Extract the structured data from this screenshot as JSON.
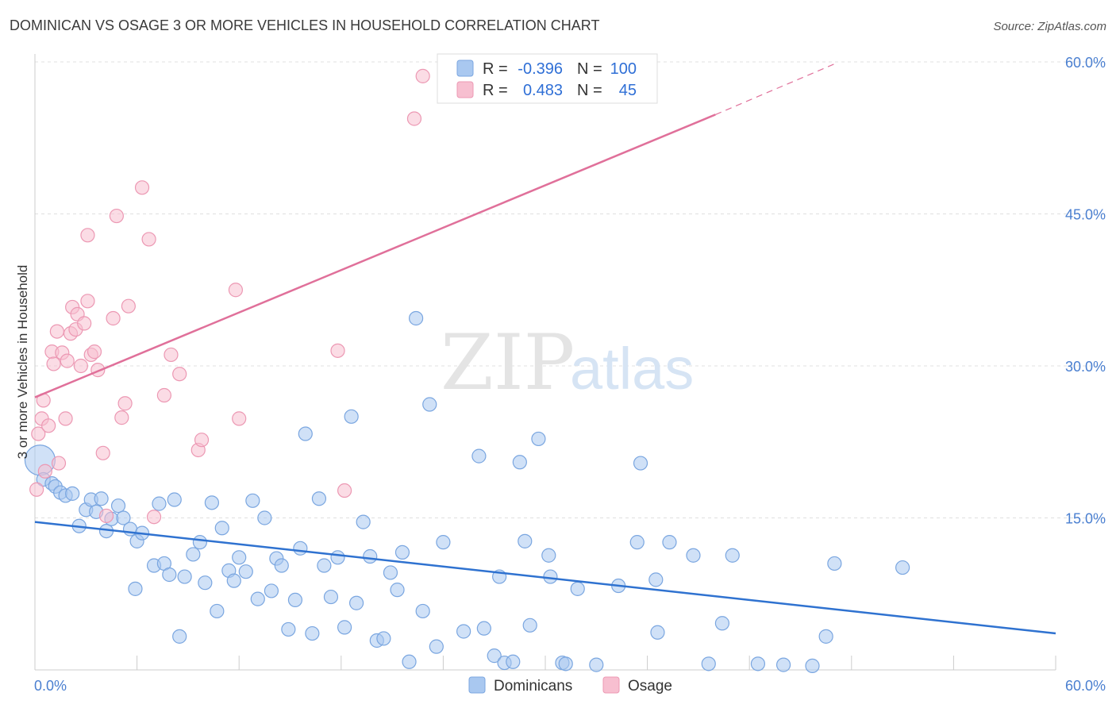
{
  "title": "DOMINICAN VS OSAGE 3 OR MORE VEHICLES IN HOUSEHOLD CORRELATION CHART",
  "source": "Source: ZipAtlas.com",
  "watermark": {
    "zip": "ZIP",
    "atlas": "atlas"
  },
  "colors": {
    "dominican_fill": "#a9c8f0",
    "dominican_stroke": "#7aa6e0",
    "dominican_line": "#2f72d0",
    "osage_fill": "#f7bfd0",
    "osage_stroke": "#ec98b3",
    "osage_line": "#e0709a",
    "tick_label": "#4a7fd0",
    "grid": "#e0e0e0"
  },
  "legend": {
    "rows": [
      {
        "r_label": "R =",
        "r_value": "-0.396",
        "n_label": "N =",
        "n_value": "100"
      },
      {
        "r_label": "R =",
        "r_value": "0.483",
        "n_label": "N =",
        "n_value": "45"
      }
    ]
  },
  "bottom_legend": [
    "Dominicans",
    "Osage"
  ],
  "chart_data": {
    "type": "scatter",
    "title": "DOMINICAN VS OSAGE 3 OR MORE VEHICLES IN HOUSEHOLD CORRELATION CHART",
    "ylabel": "3 or more Vehicles in Household",
    "xlabel": "",
    "xlim": [
      0,
      60
    ],
    "ylim": [
      0,
      60
    ],
    "x_tick_labels": [
      "0.0%",
      "60.0%"
    ],
    "y_ticks": [
      15,
      30,
      45,
      60
    ],
    "y_tick_labels": [
      "15.0%",
      "30.0%",
      "45.0%",
      "60.0%"
    ],
    "grid": true,
    "legend_placement": "top-center",
    "series": [
      {
        "name": "Dominicans",
        "r": -0.396,
        "n": 100,
        "trend": {
          "x0": 0,
          "y0": 14.6,
          "x1": 60,
          "y1": 3.6
        },
        "points": [
          [
            0.3,
            20.7
          ],
          [
            0.5,
            18.8
          ],
          [
            1.0,
            18.4
          ],
          [
            1.2,
            18.1
          ],
          [
            1.5,
            17.5
          ],
          [
            1.8,
            17.2
          ],
          [
            2.2,
            17.4
          ],
          [
            2.6,
            14.2
          ],
          [
            3.0,
            15.8
          ],
          [
            3.3,
            16.8
          ],
          [
            3.6,
            15.6
          ],
          [
            3.9,
            16.9
          ],
          [
            4.2,
            13.7
          ],
          [
            4.5,
            14.9
          ],
          [
            4.9,
            16.2
          ],
          [
            5.2,
            15.0
          ],
          [
            5.6,
            13.9
          ],
          [
            6.0,
            12.7
          ],
          [
            6.3,
            13.5
          ],
          [
            5.9,
            8.0
          ],
          [
            7.0,
            10.3
          ],
          [
            7.3,
            16.4
          ],
          [
            7.6,
            10.5
          ],
          [
            7.9,
            9.4
          ],
          [
            8.2,
            16.8
          ],
          [
            8.5,
            3.3
          ],
          [
            8.8,
            9.2
          ],
          [
            9.3,
            11.4
          ],
          [
            9.7,
            12.6
          ],
          [
            10.0,
            8.6
          ],
          [
            10.4,
            16.5
          ],
          [
            10.7,
            5.8
          ],
          [
            11.0,
            14.0
          ],
          [
            11.4,
            9.8
          ],
          [
            11.7,
            8.8
          ],
          [
            12.0,
            11.1
          ],
          [
            12.4,
            9.7
          ],
          [
            12.8,
            16.7
          ],
          [
            13.1,
            7.0
          ],
          [
            13.5,
            15.0
          ],
          [
            13.9,
            7.8
          ],
          [
            14.2,
            11.0
          ],
          [
            14.5,
            10.3
          ],
          [
            14.9,
            4.0
          ],
          [
            15.3,
            6.9
          ],
          [
            15.6,
            12.0
          ],
          [
            15.9,
            23.3
          ],
          [
            16.3,
            3.6
          ],
          [
            16.7,
            16.9
          ],
          [
            17.0,
            10.3
          ],
          [
            17.4,
            7.2
          ],
          [
            17.8,
            11.1
          ],
          [
            18.2,
            4.2
          ],
          [
            18.6,
            25.0
          ],
          [
            18.9,
            6.6
          ],
          [
            19.3,
            14.6
          ],
          [
            19.7,
            11.2
          ],
          [
            20.1,
            2.9
          ],
          [
            20.5,
            3.1
          ],
          [
            20.9,
            9.6
          ],
          [
            21.3,
            7.9
          ],
          [
            21.6,
            11.6
          ],
          [
            22.0,
            0.8
          ],
          [
            22.4,
            34.7
          ],
          [
            22.8,
            5.8
          ],
          [
            23.2,
            26.2
          ],
          [
            23.6,
            2.3
          ],
          [
            24.0,
            12.6
          ],
          [
            25.2,
            3.8
          ],
          [
            26.1,
            21.1
          ],
          [
            26.4,
            4.1
          ],
          [
            27.0,
            1.4
          ],
          [
            27.3,
            9.2
          ],
          [
            27.6,
            0.7
          ],
          [
            28.1,
            0.8
          ],
          [
            28.5,
            20.5
          ],
          [
            28.8,
            12.7
          ],
          [
            29.1,
            4.4
          ],
          [
            29.6,
            22.8
          ],
          [
            30.2,
            11.3
          ],
          [
            30.3,
            9.2
          ],
          [
            31.0,
            0.7
          ],
          [
            31.2,
            0.6
          ],
          [
            31.9,
            8.0
          ],
          [
            33.0,
            0.5
          ],
          [
            34.3,
            8.3
          ],
          [
            35.4,
            12.6
          ],
          [
            35.6,
            20.4
          ],
          [
            36.5,
            8.9
          ],
          [
            36.6,
            3.7
          ],
          [
            37.3,
            12.6
          ],
          [
            38.7,
            11.3
          ],
          [
            39.6,
            0.6
          ],
          [
            40.4,
            4.6
          ],
          [
            41.0,
            11.3
          ],
          [
            42.5,
            0.6
          ],
          [
            44.0,
            0.5
          ],
          [
            45.7,
            0.4
          ],
          [
            46.5,
            3.3
          ],
          [
            47.0,
            10.5
          ],
          [
            51.0,
            10.1
          ]
        ]
      },
      {
        "name": "Osage",
        "r": 0.483,
        "n": 45,
        "trend": {
          "x0": 0,
          "y0": 26.9,
          "x1": 40,
          "y1": 54.8,
          "dash_x1": 47,
          "dash_y1": 59.8
        },
        "points": [
          [
            0.1,
            17.8
          ],
          [
            0.2,
            23.3
          ],
          [
            0.4,
            24.8
          ],
          [
            0.5,
            26.6
          ],
          [
            0.6,
            19.6
          ],
          [
            0.8,
            24.1
          ],
          [
            1.0,
            31.4
          ],
          [
            1.1,
            30.2
          ],
          [
            1.3,
            33.4
          ],
          [
            1.4,
            20.4
          ],
          [
            1.6,
            31.3
          ],
          [
            1.8,
            24.8
          ],
          [
            1.9,
            30.5
          ],
          [
            2.1,
            33.2
          ],
          [
            2.2,
            35.8
          ],
          [
            2.4,
            33.6
          ],
          [
            2.5,
            35.1
          ],
          [
            2.7,
            30.0
          ],
          [
            2.9,
            34.2
          ],
          [
            3.1,
            36.4
          ],
          [
            3.1,
            42.9
          ],
          [
            3.3,
            31.1
          ],
          [
            3.5,
            31.4
          ],
          [
            3.7,
            29.6
          ],
          [
            4.0,
            21.4
          ],
          [
            4.2,
            15.2
          ],
          [
            4.6,
            34.7
          ],
          [
            4.8,
            44.8
          ],
          [
            5.1,
            24.9
          ],
          [
            5.3,
            26.3
          ],
          [
            5.5,
            35.9
          ],
          [
            6.3,
            47.6
          ],
          [
            6.7,
            42.5
          ],
          [
            7.0,
            15.1
          ],
          [
            7.6,
            27.1
          ],
          [
            8.0,
            31.1
          ],
          [
            8.5,
            29.2
          ],
          [
            9.6,
            21.7
          ],
          [
            9.8,
            22.7
          ],
          [
            11.8,
            37.5
          ],
          [
            12.0,
            24.8
          ],
          [
            17.8,
            31.5
          ],
          [
            18.2,
            17.7
          ],
          [
            22.3,
            54.4
          ],
          [
            22.8,
            58.6
          ]
        ]
      }
    ]
  }
}
